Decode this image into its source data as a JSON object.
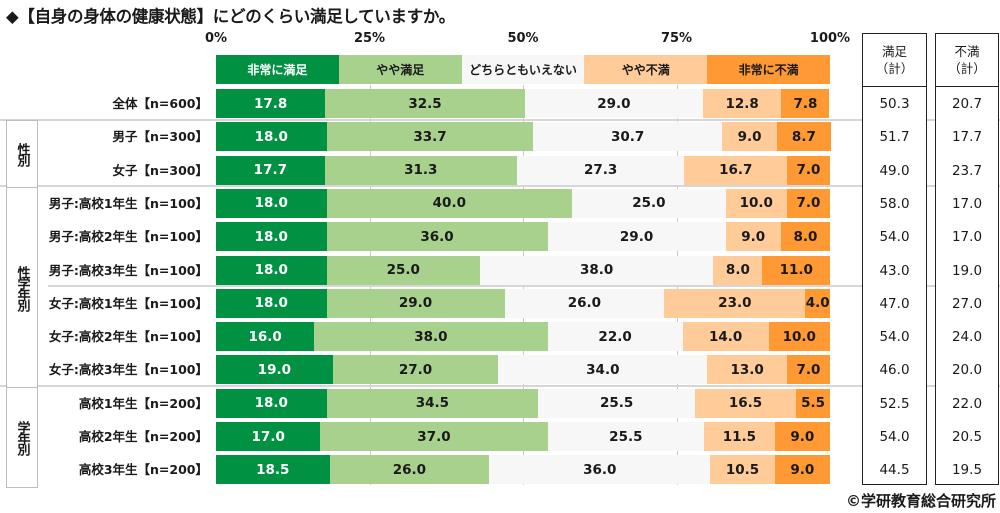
{
  "title": "◆【自身の身体の健康状態】にどのくらい満足していますか。",
  "copyright": "©学研教育総合研究所",
  "colors": {
    "very_satisfied": "#009242",
    "somewhat_satisfied": "#a9d18e",
    "neutral": "#f7f7f7",
    "somewhat_dissatisfied": "#ffcc99",
    "very_dissatisfied": "#ff9933"
  },
  "summary_headers": {
    "satisfied_line1": "満足",
    "satisfied_line2": "（計）",
    "dissatisfied_line1": "不満",
    "dissatisfied_line2": "（計）"
  },
  "groups": [
    {
      "label": "性別",
      "rows": [
        1,
        2
      ]
    },
    {
      "label": "性学年別",
      "rows": [
        3,
        8
      ]
    },
    {
      "label": "学年別",
      "rows": [
        9,
        11
      ]
    }
  ],
  "chart_data": {
    "type": "bar",
    "orientation": "horizontal-stacked-100",
    "title": "◆【自身の身体の健康状態】にどのくらい満足していますか。",
    "xlim": [
      0,
      100
    ],
    "x_ticks": [
      "0%",
      "25%",
      "50%",
      "75%",
      "100%"
    ],
    "legend_position": "top",
    "legend": [
      "非常に満足",
      "やや満足",
      "どちらともいえない",
      "やや不満",
      "非常に不満"
    ],
    "categories": [
      "全体【n=600】",
      "男子【n=300】",
      "女子【n=300】",
      "男子:高校1年生【n=100】",
      "男子:高校2年生【n=100】",
      "男子:高校3年生【n=100】",
      "女子:高校1年生【n=100】",
      "女子:高校2年生【n=100】",
      "女子:高校3年生【n=100】",
      "高校1年生【n=200】",
      "高校2年生【n=200】",
      "高校3年生【n=200】"
    ],
    "series": [
      {
        "name": "非常に満足",
        "values": [
          17.8,
          18.0,
          17.7,
          18.0,
          18.0,
          18.0,
          18.0,
          16.0,
          19.0,
          18.0,
          17.0,
          18.5
        ]
      },
      {
        "name": "やや満足",
        "values": [
          32.5,
          33.7,
          31.3,
          40.0,
          36.0,
          25.0,
          29.0,
          38.0,
          27.0,
          34.5,
          37.0,
          26.0
        ]
      },
      {
        "name": "どちらともいえない",
        "values": [
          29.0,
          30.7,
          27.3,
          25.0,
          29.0,
          38.0,
          26.0,
          22.0,
          34.0,
          25.5,
          25.5,
          36.0
        ]
      },
      {
        "name": "やや不満",
        "values": [
          12.8,
          9.0,
          16.7,
          10.0,
          9.0,
          8.0,
          23.0,
          14.0,
          13.0,
          16.5,
          11.5,
          10.5
        ]
      },
      {
        "name": "非常に不満",
        "values": [
          7.8,
          8.7,
          7.0,
          7.0,
          8.0,
          11.0,
          4.0,
          10.0,
          7.0,
          5.5,
          9.0,
          9.0
        ]
      }
    ],
    "summary": {
      "satisfied_total": [
        "50.3",
        "51.7",
        "49.0",
        "58.0",
        "54.0",
        "43.0",
        "47.0",
        "54.0",
        "46.0",
        "52.5",
        "54.0",
        "44.5"
      ],
      "dissatisfied_total": [
        "20.7",
        "17.7",
        "23.7",
        "17.0",
        "17.0",
        "19.0",
        "27.0",
        "24.0",
        "20.0",
        "22.0",
        "20.5",
        "19.5"
      ]
    }
  }
}
